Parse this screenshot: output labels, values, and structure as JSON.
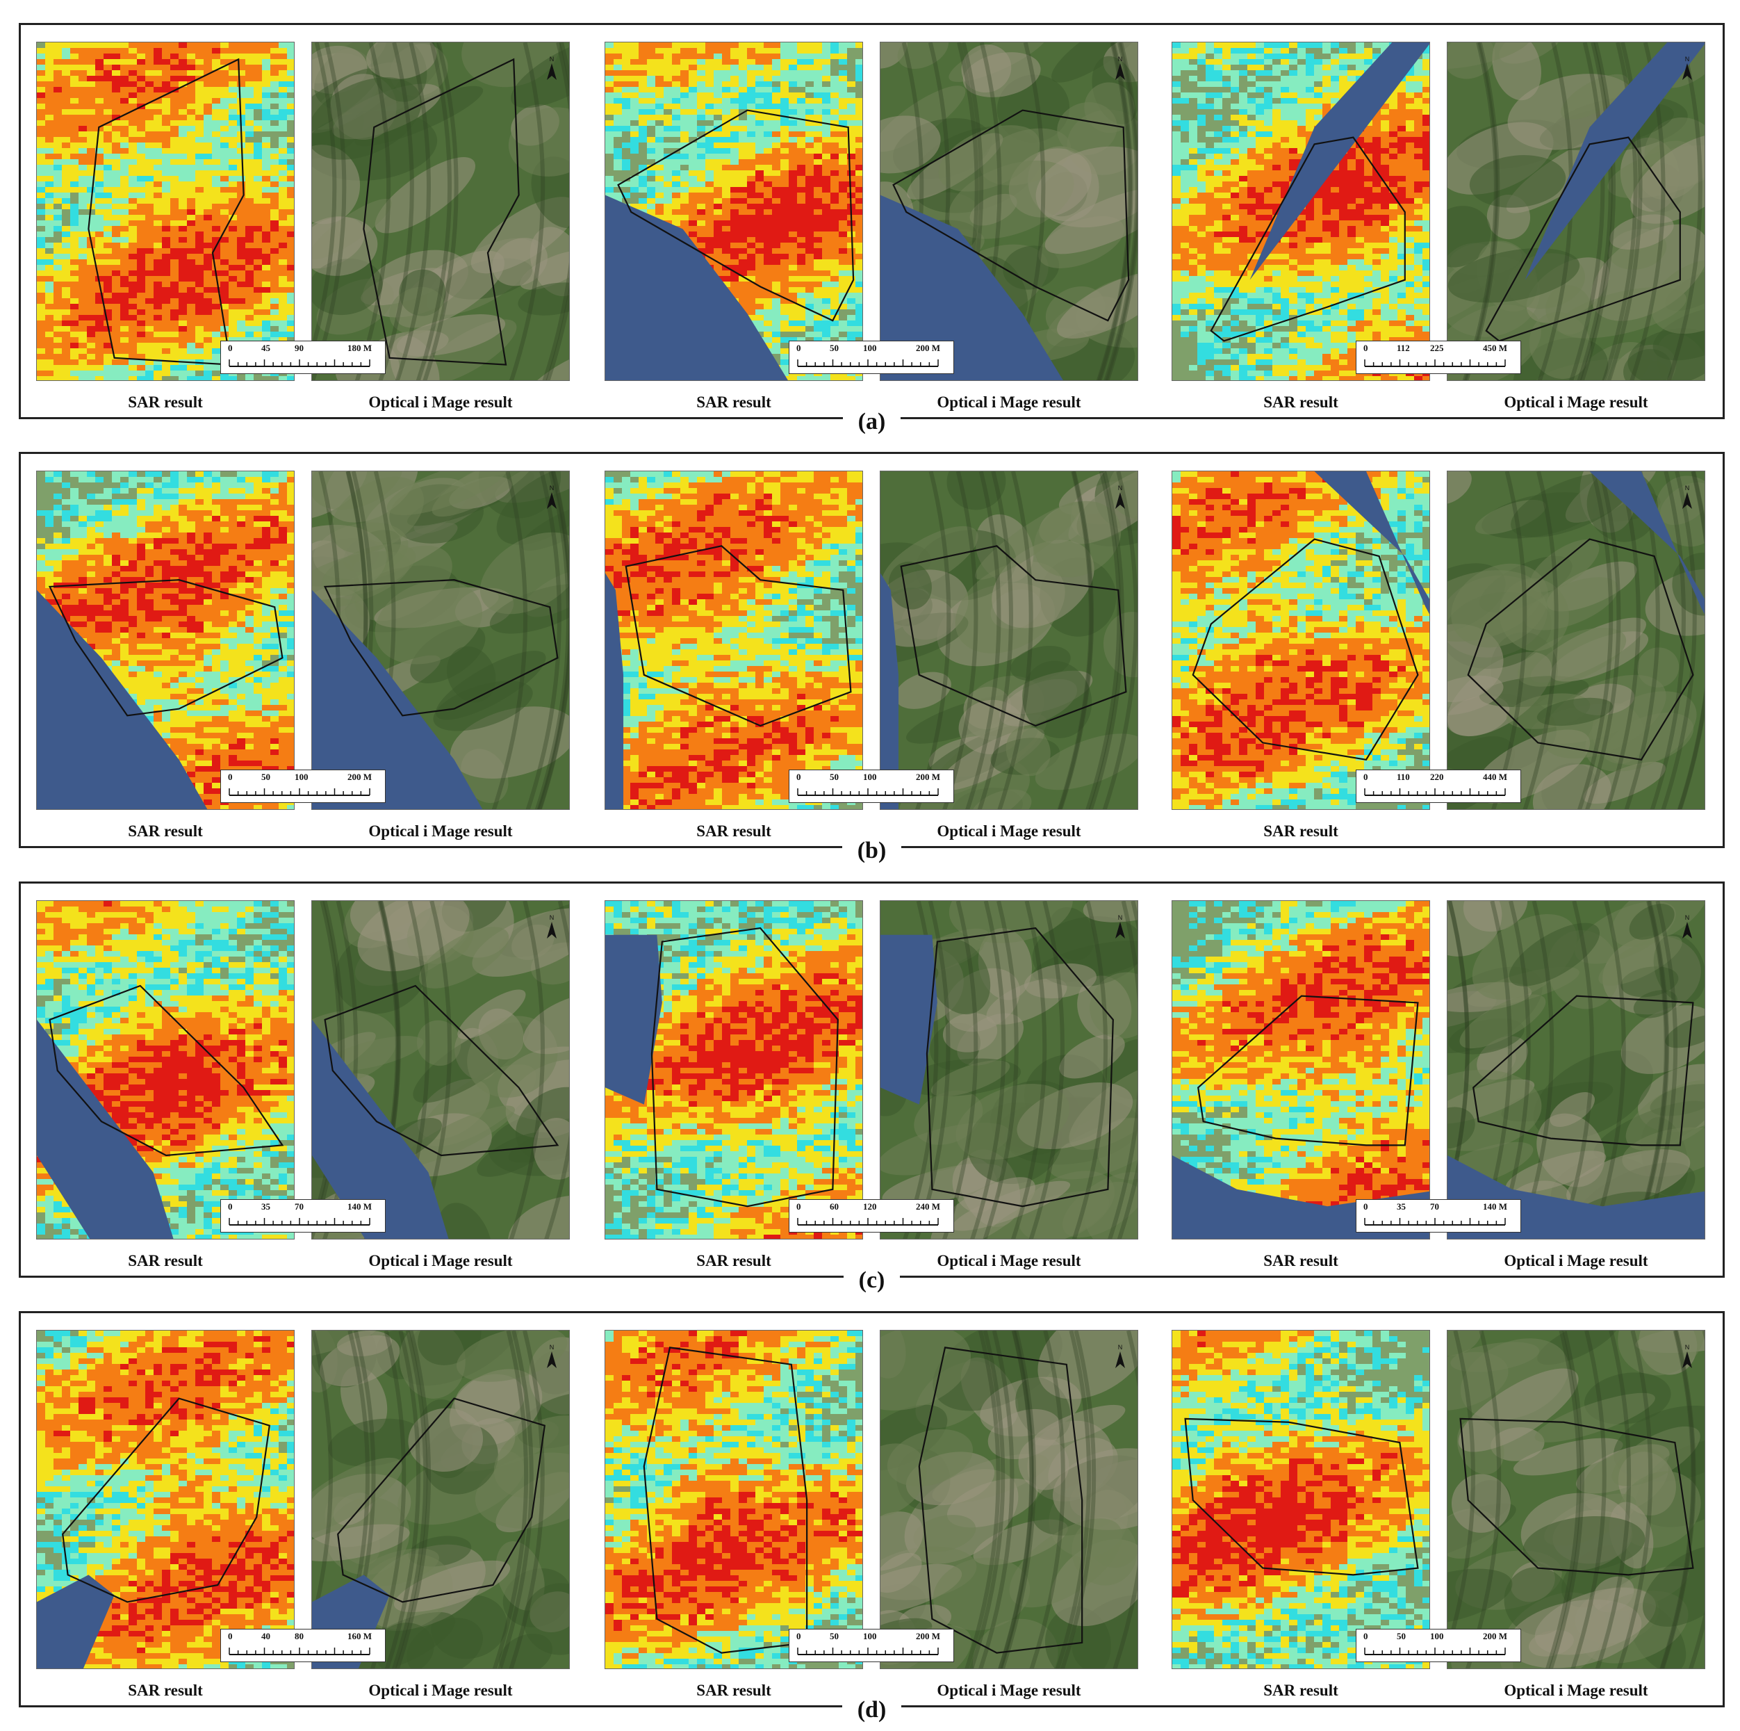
{
  "rows": [
    {
      "label": "(a)",
      "pairs": [
        {
          "sar_caption": "SAR result",
          "opt_caption": "Optical i Mage result",
          "scale": [
            "0",
            "45",
            "90",
            "180 M"
          ]
        },
        {
          "sar_caption": "SAR result",
          "opt_caption": "Optical i Mage result",
          "scale": [
            "0",
            "50",
            "100",
            "200 M"
          ]
        },
        {
          "sar_caption": "SAR result",
          "opt_caption": "Optical i Mage result",
          "scale": [
            "0",
            "112",
            "225",
            "450 M"
          ]
        }
      ]
    },
    {
      "label": "(b)",
      "pairs": [
        {
          "sar_caption": "SAR result",
          "opt_caption": "Optical i Mage result",
          "scale": [
            "0",
            "50",
            "100",
            "200 M"
          ]
        },
        {
          "sar_caption": "SAR result",
          "opt_caption": "Optical i Mage result",
          "scale": [
            "0",
            "50",
            "100",
            "200 M"
          ]
        },
        {
          "sar_caption": "SAR result",
          "opt_caption": "",
          "scale": [
            "0",
            "110",
            "220",
            "440 M"
          ]
        }
      ]
    },
    {
      "label": "(c)",
      "pairs": [
        {
          "sar_caption": "SAR result",
          "opt_caption": "Optical i Mage result",
          "scale": [
            "0",
            "35",
            "70",
            "140 M"
          ]
        },
        {
          "sar_caption": "SAR result",
          "opt_caption": "Optical i Mage result",
          "scale": [
            "0",
            "60",
            "120",
            "240 M"
          ]
        },
        {
          "sar_caption": "SAR result",
          "opt_caption": "Optical i Mage result",
          "scale": [
            "0",
            "35",
            "70",
            "140 M"
          ]
        }
      ]
    },
    {
      "label": "(d)",
      "pairs": [
        {
          "sar_caption": "SAR result",
          "opt_caption": "Optical i Mage result",
          "scale": [
            "0",
            "40",
            "80",
            "160 M"
          ]
        },
        {
          "sar_caption": "SAR result",
          "opt_caption": "Optical i Mage result",
          "scale": [
            "0",
            "50",
            "100",
            "200 M"
          ]
        },
        {
          "sar_caption": "SAR result",
          "opt_caption": "Optical i Mage result",
          "scale": [
            "0",
            "50",
            "100",
            "200 M"
          ]
        }
      ]
    }
  ],
  "colors": {
    "sar_high": "#e01a14",
    "sar_mid": "#f57d14",
    "sar_low": "#f4e21c",
    "sar_stable": "#86ecc0",
    "sar_cyan": "#33dde0",
    "river": "#3e5a8c",
    "vegetation": "#4f6e3a",
    "bare_slope": "#9a9580",
    "outline": "#111111"
  },
  "icons": {
    "north_arrow": "north-arrow-icon"
  }
}
